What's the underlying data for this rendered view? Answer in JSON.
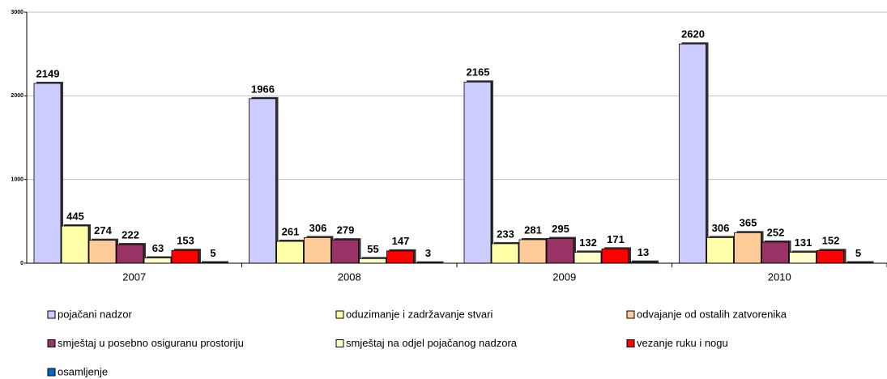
{
  "chart_data": {
    "type": "bar",
    "categories": [
      "2007",
      "2008",
      "2009",
      "2010"
    ],
    "series": [
      {
        "name": "pojačani nadzor",
        "color": "#ccccff",
        "values": [
          2149,
          1966,
          2165,
          2620
        ]
      },
      {
        "name": "oduzimanje i zadržavanje stvari",
        "color": "#ffffaa",
        "values": [
          445,
          261,
          233,
          306
        ]
      },
      {
        "name": "odvajanje od ostalih zatvorenika",
        "color": "#ffcc99",
        "values": [
          274,
          306,
          281,
          365
        ]
      },
      {
        "name": "smještaj u posebno osiguranu prostoriju",
        "color": "#993366",
        "values": [
          222,
          279,
          295,
          252
        ]
      },
      {
        "name": "smještaj na odjel pojačanog nadzora",
        "color": "#ffffcc",
        "values": [
          63,
          55,
          132,
          131
        ]
      },
      {
        "name": "vezanje ruku i nogu",
        "color": "#ff0000",
        "values": [
          153,
          147,
          171,
          152
        ]
      },
      {
        "name": "osamljenje",
        "color": "#0066cc",
        "values": [
          5,
          3,
          13,
          5
        ]
      }
    ],
    "ylim": [
      0,
      3000
    ],
    "yticks": [
      0,
      1000,
      2000,
      3000
    ],
    "grid": true,
    "legend": "bottom"
  }
}
